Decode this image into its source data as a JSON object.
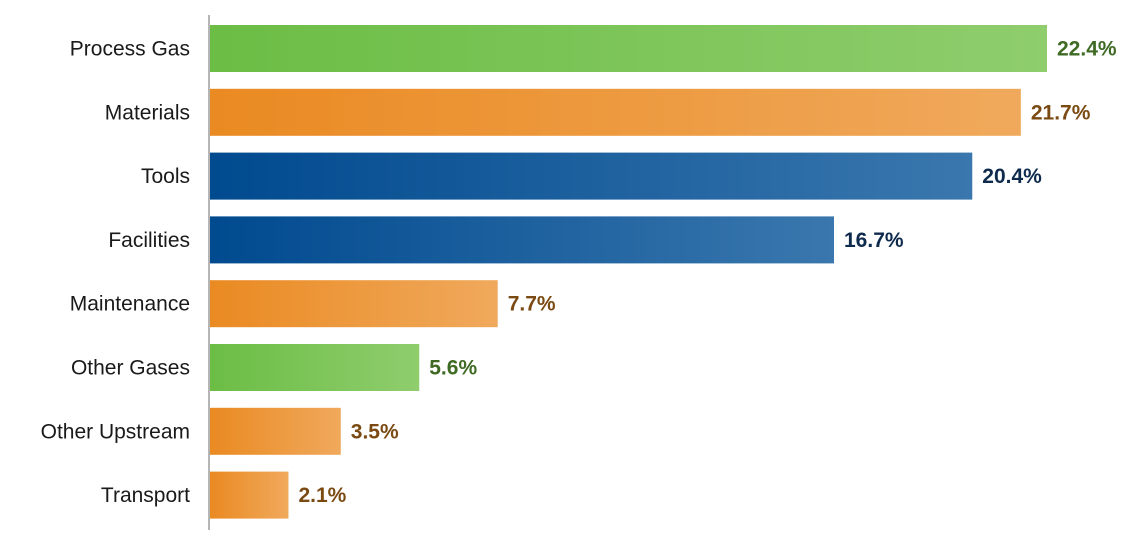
{
  "chart_data": {
    "type": "bar",
    "orientation": "horizontal",
    "title": "",
    "xlabel": "",
    "ylabel": "",
    "xlim": [
      0,
      22.4
    ],
    "grid": false,
    "categories": [
      "Process Gas",
      "Materials",
      "Tools",
      "Facilities",
      "Maintenance",
      "Other Gases",
      "Other Upstream",
      "Transport"
    ],
    "values": [
      22.4,
      21.7,
      20.4,
      16.7,
      7.7,
      5.6,
      3.5,
      2.1
    ],
    "data_labels": [
      "22.4%",
      "21.7%",
      "20.4%",
      "16.7%",
      "7.7%",
      "5.6%",
      "3.5%",
      "2.1%"
    ],
    "color_groups": [
      "green",
      "orange",
      "blue",
      "blue",
      "orange",
      "green",
      "orange",
      "orange"
    ]
  },
  "colors": {
    "green": {
      "start": "#6bbd45",
      "end": "#8fcd6d",
      "label": "#3f6a24"
    },
    "orange": {
      "start": "#ea8a22",
      "end": "#f0a95c",
      "label": "#7a4a12"
    },
    "blue": {
      "start": "#004a8f",
      "end": "#3a77ae",
      "label": "#0e2a4c"
    },
    "category_text": "#1a1a1a",
    "axis": "#b5b5b5"
  }
}
